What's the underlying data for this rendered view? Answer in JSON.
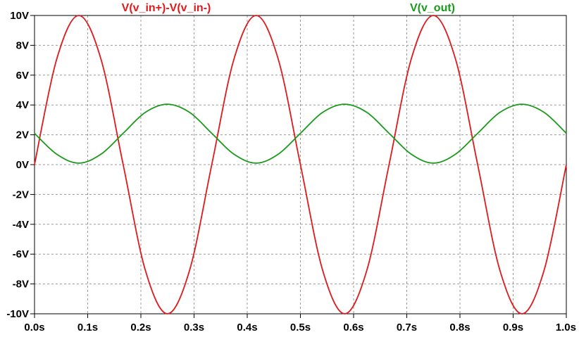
{
  "chart_data": {
    "type": "line",
    "xlim": [
      0,
      1
    ],
    "ylim": [
      -10,
      10
    ],
    "x_ticks": [
      0,
      0.1,
      0.2,
      0.3,
      0.4,
      0.5,
      0.6,
      0.7,
      0.8,
      0.9,
      1.0
    ],
    "x_tick_labels": [
      "0.0s",
      "0.1s",
      "0.2s",
      "0.3s",
      "0.4s",
      "0.5s",
      "0.6s",
      "0.7s",
      "0.8s",
      "0.9s",
      "1.0s"
    ],
    "y_ticks": [
      10,
      8,
      6,
      4,
      2,
      0,
      -2,
      -4,
      -6,
      -8,
      -10
    ],
    "y_tick_labels": [
      "10V",
      "8V",
      "6V",
      "4V",
      "2V",
      "0V",
      "-2V",
      "-4V",
      "-6V",
      "-8V",
      "-10V"
    ],
    "grid": true,
    "series": [
      {
        "name": "V(v_in+)-V(v_in-)",
        "color": "#e0191c",
        "x": [
          0,
          0.0417,
          0.0833,
          0.125,
          0.1667,
          0.2083,
          0.25,
          0.2917,
          0.3333,
          0.375,
          0.4167,
          0.4583,
          0.5,
          0.5417,
          0.5833,
          0.625,
          0.6667,
          0.7083,
          0.75,
          0.7917,
          0.8333,
          0.875,
          0.9167,
          0.9583,
          1.0
        ],
        "y": [
          0,
          7.07,
          10,
          7.07,
          0,
          -7.07,
          -10,
          -7.07,
          0,
          7.07,
          10,
          7.07,
          0,
          -7.07,
          -10,
          -7.07,
          0,
          7.07,
          10,
          7.07,
          0,
          -7.07,
          -10,
          -7.07,
          0
        ]
      },
      {
        "name": "V(v_out)",
        "color": "#1a9a1a",
        "x": [
          0,
          0.0417,
          0.0833,
          0.125,
          0.1667,
          0.2083,
          0.25,
          0.2917,
          0.3333,
          0.375,
          0.4167,
          0.4583,
          0.5,
          0.5417,
          0.5833,
          0.625,
          0.6667,
          0.7083,
          0.75,
          0.7917,
          0.8333,
          0.875,
          0.9167,
          0.9583,
          1.0
        ],
        "y": [
          2.1,
          0.7,
          0.1,
          0.7,
          2.1,
          3.5,
          4.05,
          3.5,
          2.1,
          0.7,
          0.1,
          0.7,
          2.1,
          3.5,
          4.05,
          3.5,
          2.1,
          0.7,
          0.1,
          0.7,
          2.1,
          3.5,
          4.05,
          3.5,
          2.1
        ]
      }
    ]
  }
}
